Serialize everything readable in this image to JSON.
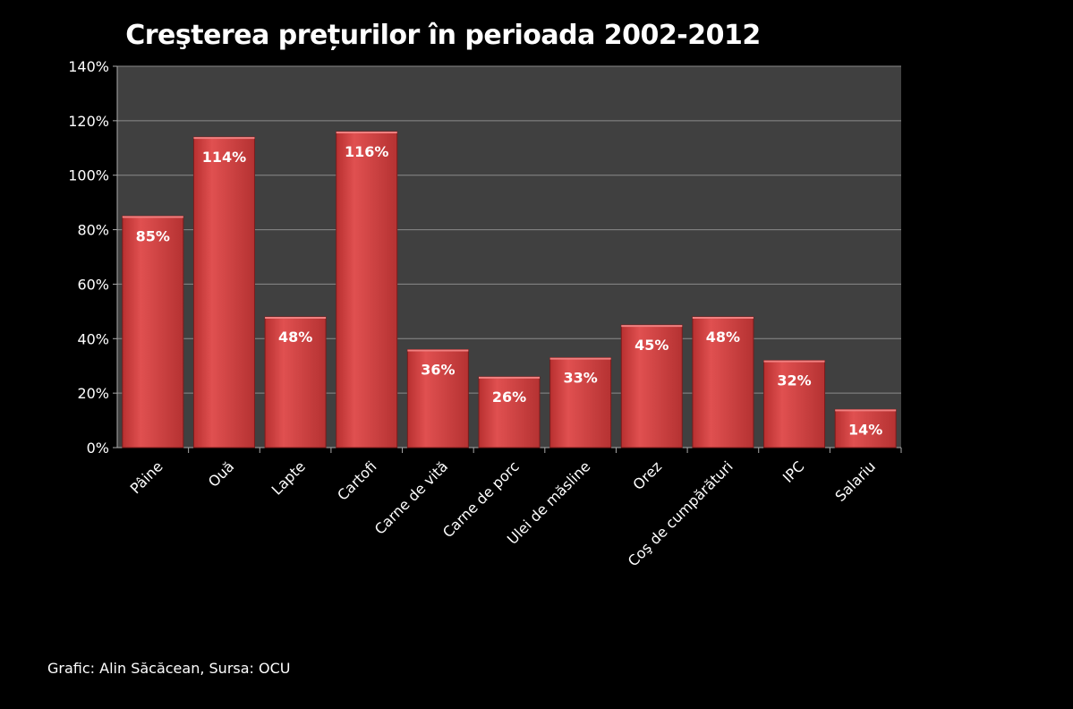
{
  "chart_data": {
    "type": "bar",
    "title": "Creşterea prețurilor în perioada 2002-2012",
    "categories": [
      "Pâine",
      "Ouă",
      "Lapte",
      "Cartofi",
      "Carne de vită",
      "Carne de porc",
      "Ulei de măsline",
      "Orez",
      "Coş de cumpărături",
      "IPC",
      "Salariu"
    ],
    "values": [
      85,
      114,
      48,
      116,
      36,
      26,
      33,
      45,
      48,
      32,
      14
    ],
    "data_labels": [
      "85%",
      "114%",
      "48%",
      "116%",
      "36%",
      "26%",
      "33%",
      "45%",
      "48%",
      "32%",
      "14%"
    ],
    "yticks": [
      "0%",
      "20%",
      "40%",
      "60%",
      "80%",
      "100%",
      "120%",
      "140%"
    ],
    "ylim": [
      0,
      140
    ],
    "xlabel": "",
    "ylabel": "",
    "grid": true,
    "colors": {
      "bar": "#d64545",
      "bar_dark": "#a82a2a",
      "plot_bg": "#404040",
      "grid": "#8a8a8a"
    }
  },
  "credit": "Grafic: Alin Săcăcean, Sursa: OCU"
}
